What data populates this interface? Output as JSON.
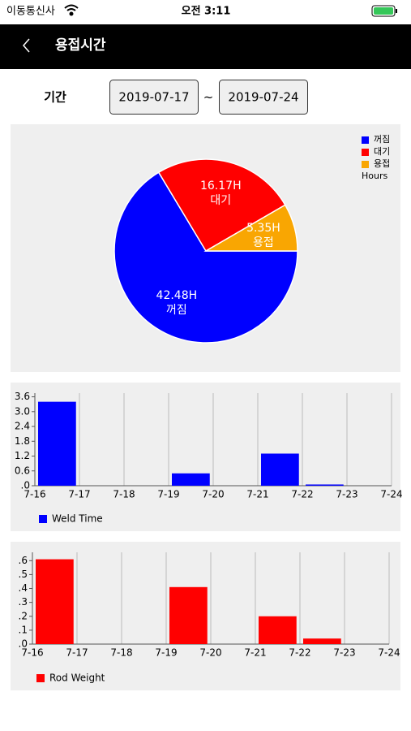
{
  "status_bar": {
    "carrier": "이동통신사",
    "time": "오전 3:11"
  },
  "header": {
    "title": "용접시간"
  },
  "period": {
    "label": "기간",
    "start": "2019-07-17",
    "separator": "~",
    "end": "2019-07-24"
  },
  "chart_data": [
    {
      "type": "pie",
      "categories": [
        "꺼짐",
        "대기",
        "용접"
      ],
      "values": [
        42.48,
        16.17,
        5.35
      ],
      "value_labels": [
        "42.48H",
        "16.17H",
        "5.35H"
      ],
      "colors": [
        "#0000ff",
        "#ff0000",
        "#f9a602"
      ],
      "legend_title": "Hours",
      "legend": "top-right"
    },
    {
      "type": "bar",
      "categories": [
        "7-16",
        "7-17",
        "7-18",
        "7-19",
        "7-20",
        "7-21",
        "7-22",
        "7-23",
        "7-24"
      ],
      "series": [
        {
          "name": "Weld Time",
          "color": "#0000ff",
          "values": [
            3.4,
            0,
            0,
            0.5,
            0,
            1.3,
            0.05,
            0,
            null
          ]
        }
      ],
      "ylim": [
        0,
        3.75
      ],
      "yticks": [
        {
          "value": 0,
          "label": ".0"
        },
        0.6,
        1.2,
        1.8,
        2.4,
        {
          "value": 3,
          "label": "3.0"
        },
        3.6
      ],
      "grid": "x",
      "legend": "bottom-left"
    },
    {
      "type": "bar",
      "categories": [
        "7-16",
        "7-17",
        "7-18",
        "7-19",
        "7-20",
        "7-21",
        "7-22",
        "7-23",
        "7-24"
      ],
      "series": [
        {
          "name": "Rod Weight",
          "color": "#ff0000",
          "values": [
            0.61,
            0,
            0,
            0.41,
            0,
            0.2,
            0.04,
            0,
            null
          ]
        }
      ],
      "ylim": [
        0,
        0.66
      ],
      "yticks": [
        {
          "value": 0,
          "label": ".0"
        },
        {
          "value": 0.1,
          "label": ".1"
        },
        {
          "value": 0.2,
          "label": ".2"
        },
        {
          "value": 0.3,
          "label": ".3"
        },
        {
          "value": 0.4,
          "label": ".4"
        },
        {
          "value": 0.5,
          "label": ".5"
        },
        {
          "value": 0.6,
          "label": ".6"
        }
      ],
      "grid": "x",
      "legend": "bottom-left"
    }
  ]
}
